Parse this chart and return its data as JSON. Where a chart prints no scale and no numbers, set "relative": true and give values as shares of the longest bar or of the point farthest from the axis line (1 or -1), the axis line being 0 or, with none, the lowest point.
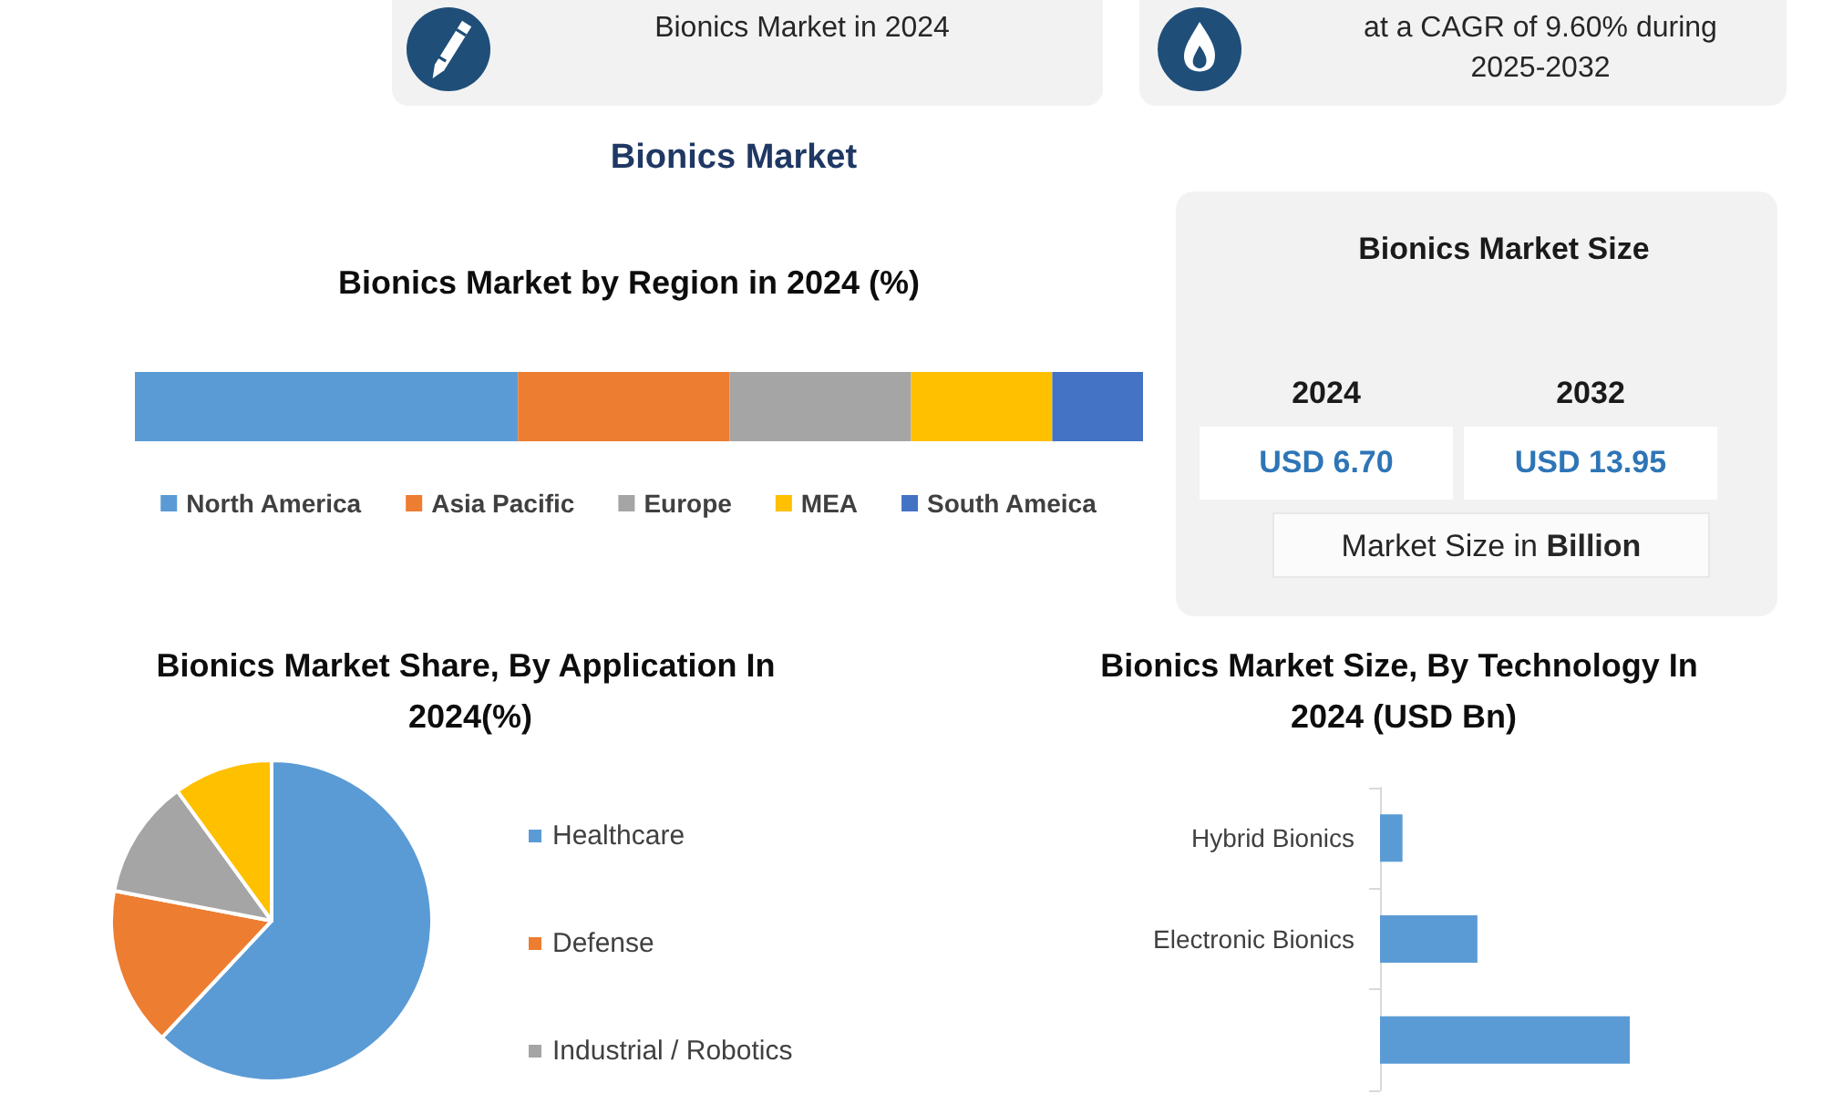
{
  "chart_data": [
    {
      "type": "other",
      "annotations": [
        "Bionics Market in 2024"
      ]
    },
    {
      "type": "other",
      "annotations": [
        "at a CAGR of 9.60% during 2025-2032"
      ]
    },
    {
      "type": "other",
      "title": "Bionics Market"
    },
    {
      "type": "bar",
      "title": "Bionics Market by Region in 2024 (%)",
      "orientation": "horizontal",
      "stacked": true,
      "relative": true,
      "categories": [
        null
      ],
      "series": [
        {
          "name": "North America",
          "color": "#5b9bd5",
          "values": [
            0.38
          ]
        },
        {
          "name": "Asia Pacific",
          "color": "#ed7d31",
          "values": [
            0.21
          ]
        },
        {
          "name": "Europe",
          "color": "#a5a5a5",
          "values": [
            0.18
          ]
        },
        {
          "name": "MEA",
          "color": "#ffc000",
          "values": [
            0.14
          ]
        },
        {
          "name": "South Ameica",
          "color": "#4472c4",
          "values": [
            0.09
          ]
        }
      ],
      "legend": "bottom"
    },
    {
      "type": "other",
      "title": "Bionics Market Size",
      "annotations": [
        "2024",
        "USD 6.70",
        "2032",
        "USD 13.95",
        "Market Size in Billion"
      ]
    },
    {
      "type": "pie",
      "title": "Bionics Market Share, By Application In 2024(%)",
      "categories": [
        "Healthcare",
        "Defense",
        "Industrial / Robotics",
        null
      ],
      "values": [
        62,
        16,
        12,
        10
      ],
      "colors": [
        "#5b9bd5",
        "#ed7d31",
        "#a5a5a5",
        "#ffc000"
      ],
      "legend": "right"
    },
    {
      "type": "bar",
      "title": "Bionics Market Size, By Technology In 2024 (USD Bn)",
      "orientation": "horizontal",
      "relative": true,
      "categories": [
        "Hybrid Bionics",
        "Electronic Bionics",
        null
      ],
      "values": [
        0.09,
        0.39,
        1
      ],
      "color": "#5b9bd5"
    }
  ]
}
